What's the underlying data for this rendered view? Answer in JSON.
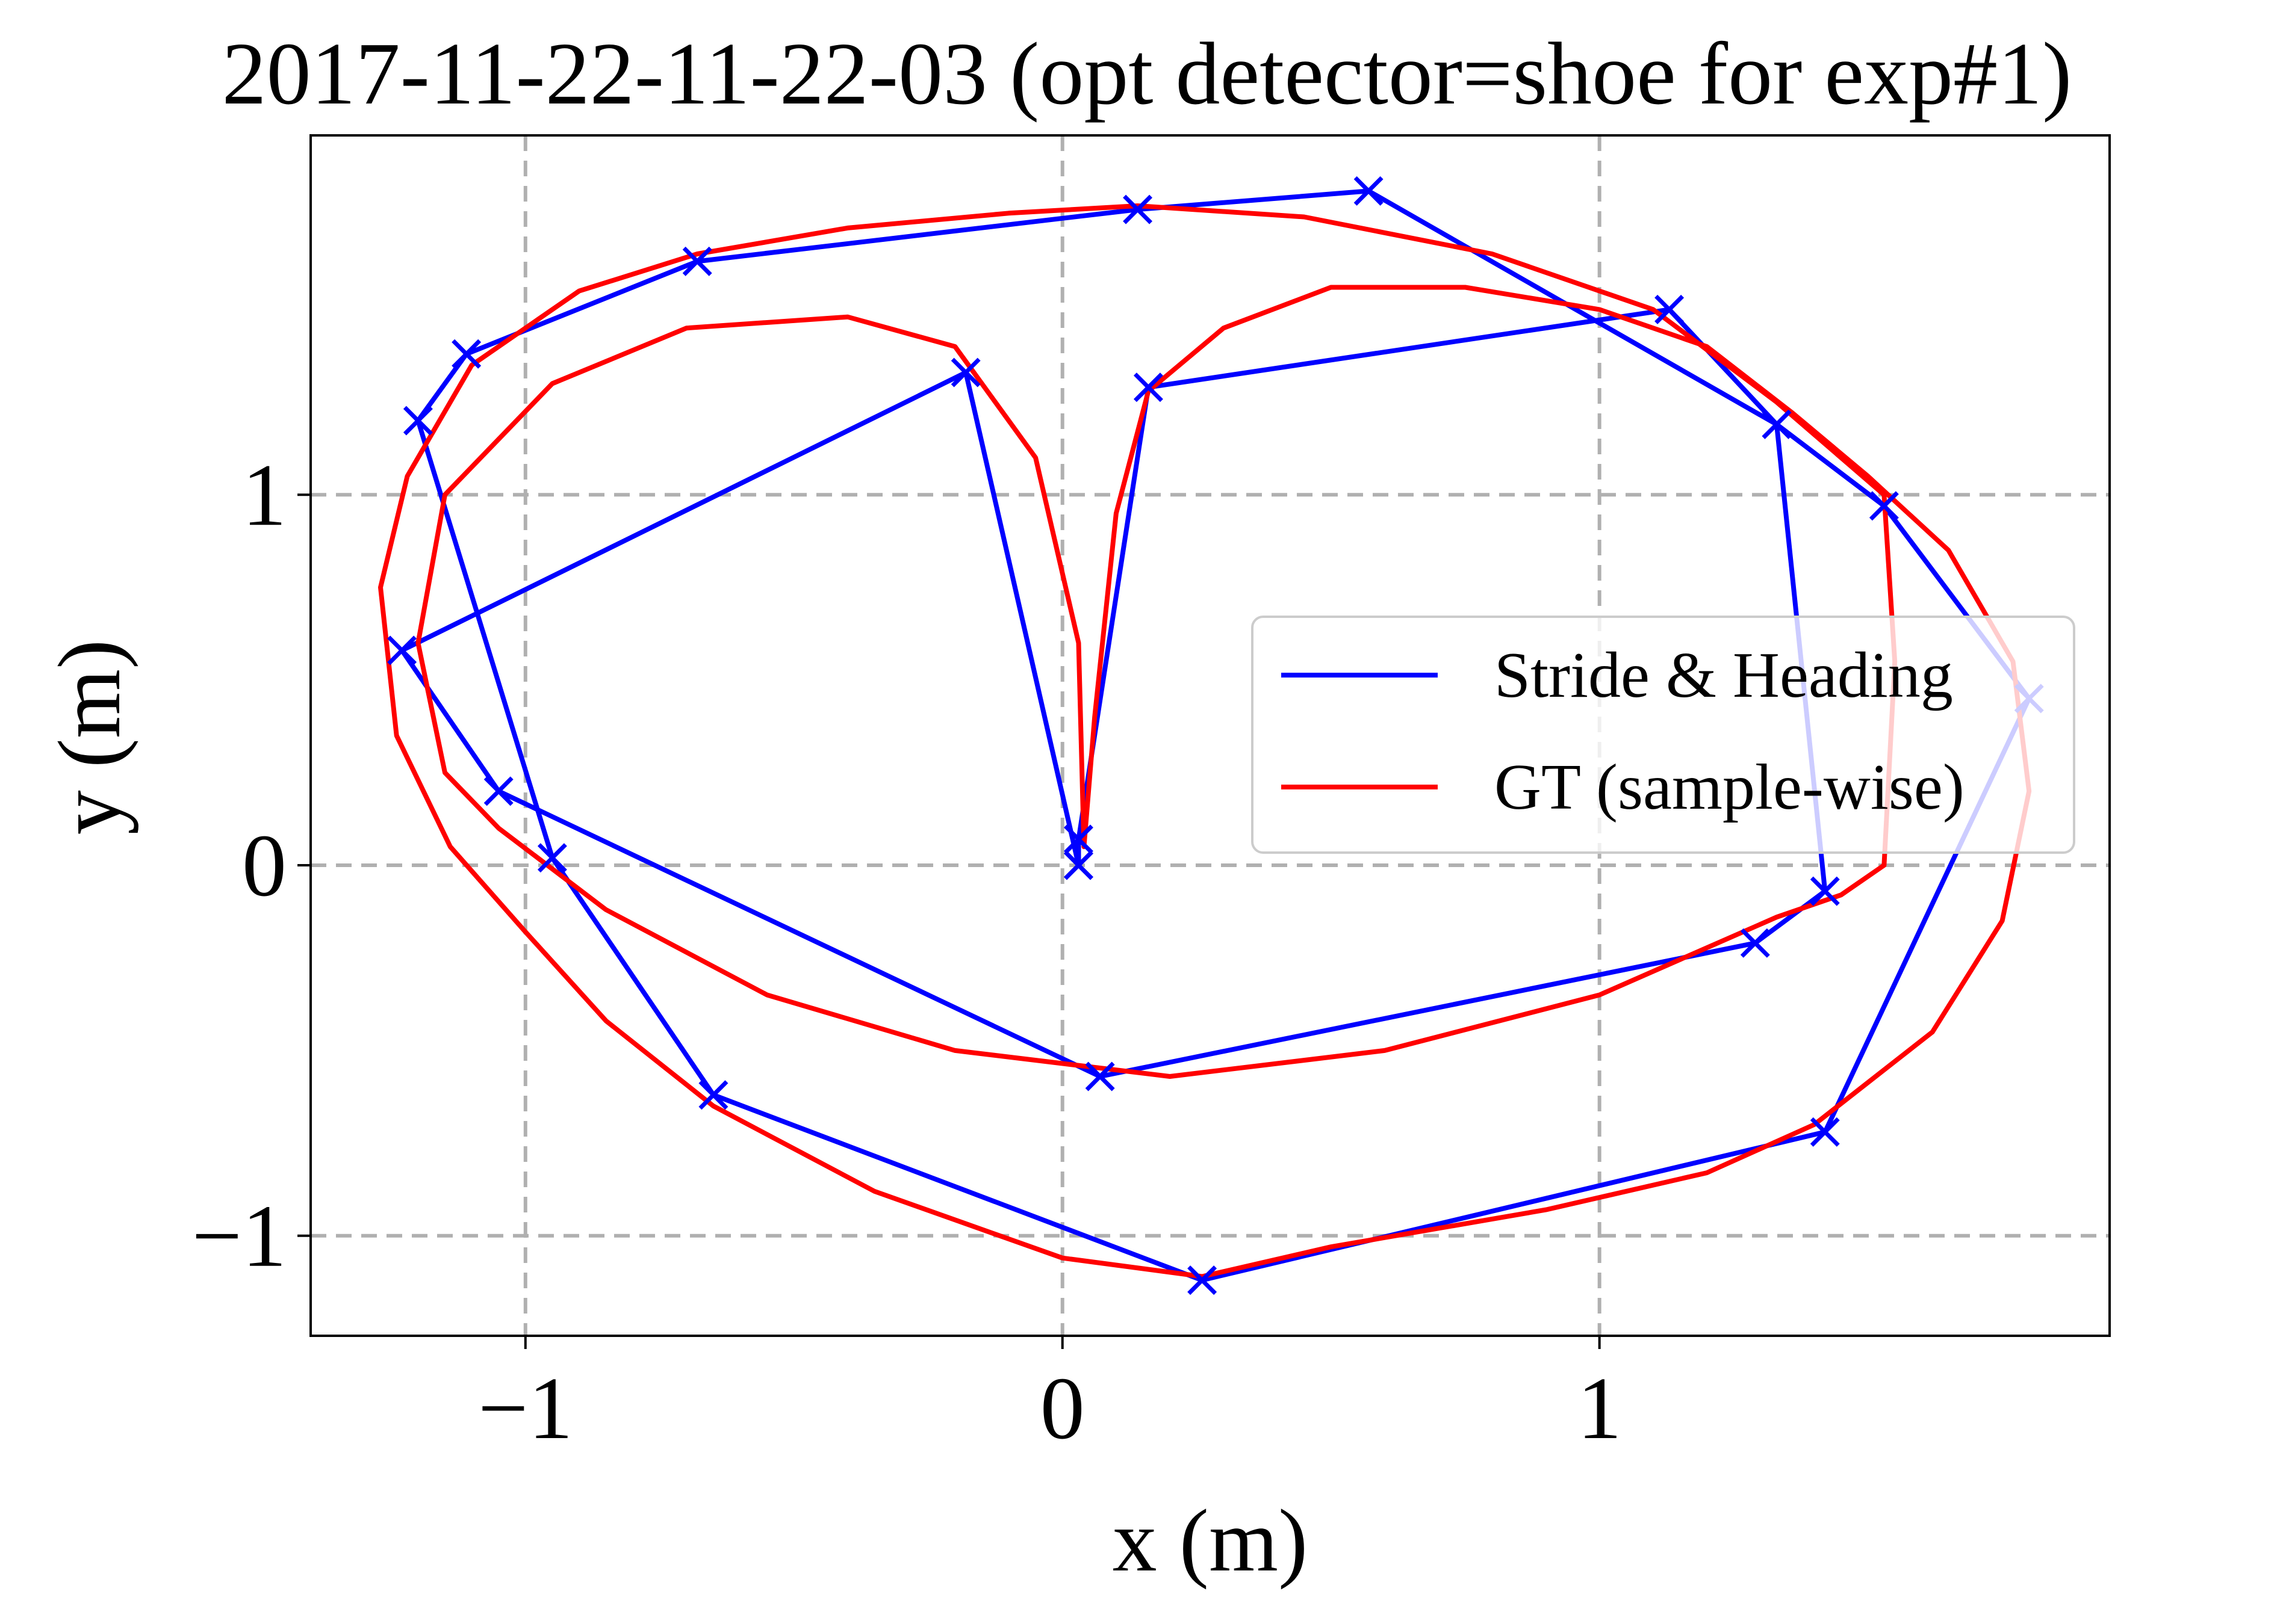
{
  "chart_data": {
    "type": "line",
    "title": "2017-11-22-11-22-03 (opt detector=shoe for exp#1)",
    "xlabel": "x (m)",
    "ylabel": "y (m)",
    "xlim": [
      -1.4,
      1.95
    ],
    "ylim": [
      -1.27,
      1.97
    ],
    "xticks": [
      -1,
      0,
      1
    ],
    "yticks": [
      -1,
      0,
      1
    ],
    "xtick_labels": [
      "−1",
      "0",
      "1"
    ],
    "ytick_labels": [
      "−1",
      "0",
      "1"
    ],
    "grid": true,
    "grid_style": "dashed",
    "legend_position": "center-right",
    "colors": {
      "stride": "#0000ff",
      "gt": "#ff0000",
      "grid": "#b0b0b0"
    },
    "series": [
      {
        "name": "Stride & Heading",
        "color": "#0000ff",
        "marker": "x",
        "x": [
          0.03,
          0.03,
          0.16,
          1.13,
          1.33,
          1.53,
          1.8,
          1.42,
          0.26,
          -0.65,
          -0.95,
          -1.2,
          -1.11,
          -0.68,
          0.14,
          0.57,
          1.33,
          1.42,
          1.29,
          0.07,
          -1.05,
          -1.23,
          -0.18,
          0.03
        ],
        "y": [
          0.0,
          0.07,
          1.29,
          1.5,
          1.19,
          0.97,
          0.45,
          -0.72,
          -1.12,
          -0.62,
          0.02,
          1.2,
          1.38,
          1.63,
          1.77,
          1.82,
          1.19,
          -0.07,
          -0.21,
          -0.57,
          0.2,
          0.58,
          1.33,
          0.0
        ]
      },
      {
        "name": "GT (sample-wise)",
        "color": "#ff0000",
        "x": [
          0.04,
          0.06,
          0.1,
          0.16,
          0.3,
          0.5,
          0.75,
          1.0,
          1.2,
          1.36,
          1.5,
          1.65,
          1.77,
          1.8,
          1.75,
          1.62,
          1.4,
          1.2,
          0.9,
          0.5,
          0.26,
          0.0,
          -0.35,
          -0.65,
          -0.85,
          -1.0,
          -1.14,
          -1.24,
          -1.27,
          -1.22,
          -1.1,
          -0.9,
          -0.68,
          -0.4,
          -0.1,
          0.14,
          0.45,
          0.8,
          1.1,
          1.33,
          1.53,
          1.55,
          1.53,
          1.45,
          1.33,
          1.0,
          0.6,
          0.2,
          -0.2,
          -0.55,
          -0.85,
          -1.05,
          -1.15,
          -1.2,
          -1.15,
          -0.95,
          -0.7,
          -0.4,
          -0.2,
          -0.05,
          0.03,
          0.04
        ],
        "y": [
          0.05,
          0.4,
          0.95,
          1.28,
          1.45,
          1.56,
          1.56,
          1.5,
          1.4,
          1.22,
          1.05,
          0.85,
          0.55,
          0.2,
          -0.15,
          -0.45,
          -0.7,
          -0.83,
          -0.93,
          -1.03,
          -1.11,
          -1.06,
          -0.88,
          -0.65,
          -0.42,
          -0.18,
          0.05,
          0.35,
          0.75,
          1.05,
          1.35,
          1.55,
          1.65,
          1.72,
          1.76,
          1.78,
          1.75,
          1.65,
          1.5,
          1.25,
          1.0,
          0.55,
          0.0,
          -0.08,
          -0.14,
          -0.35,
          -0.5,
          -0.57,
          -0.5,
          -0.35,
          -0.12,
          0.1,
          0.25,
          0.6,
          1.0,
          1.3,
          1.45,
          1.48,
          1.4,
          1.1,
          0.6,
          0.05
        ]
      }
    ]
  }
}
